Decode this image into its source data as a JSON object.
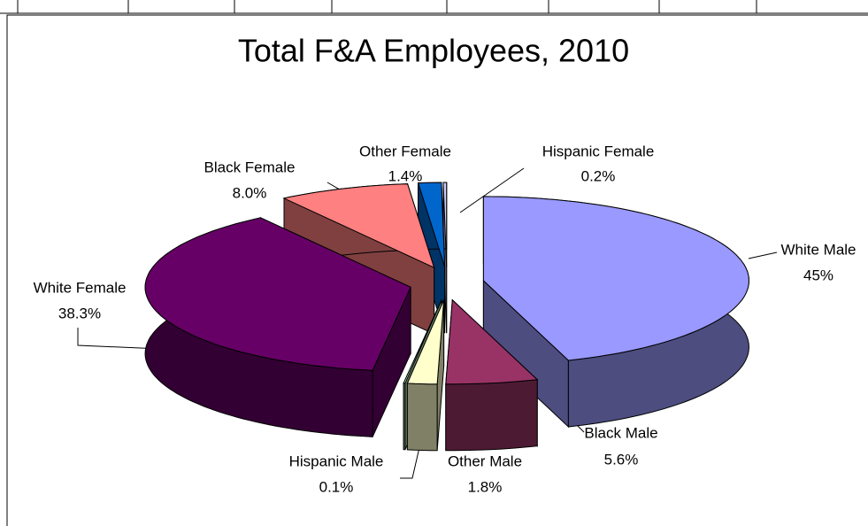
{
  "chart_data": {
    "type": "pie3d",
    "title": "Total F&A Employees, 2010",
    "categories": [
      "White Male",
      "Black Male",
      "Other Male",
      "Hispanic Male",
      "White Female",
      "Black Female",
      "Other Female",
      "Hispanic Female"
    ],
    "values": [
      45,
      5.6,
      1.8,
      0.1,
      38.3,
      8.0,
      1.4,
      0.2
    ],
    "value_labels": [
      "45%",
      "5.6%",
      "1.8%",
      "0.1%",
      "38.3%",
      "8.0%",
      "1.4%",
      "0.2%"
    ],
    "colors": [
      "#9999ff",
      "#993366",
      "#ffffcc",
      "#ccffcc",
      "#660066",
      "#ff8080",
      "#0066cc",
      "#ccccff"
    ]
  }
}
